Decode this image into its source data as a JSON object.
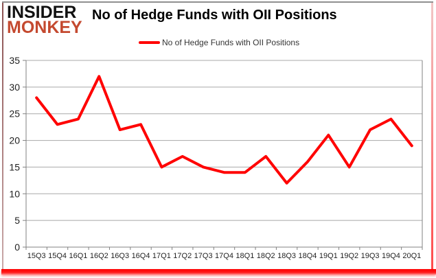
{
  "logo": {
    "line1": "INSIDER",
    "line2": "MONKEY"
  },
  "title": "No of Hedge Funds with OII Positions",
  "legend": {
    "label": "No of Hedge Funds with OII Positions"
  },
  "colors": {
    "logo_top": "#111111",
    "logo_bottom": "#C4492F",
    "title_text": "#000000",
    "legend_text": "#333333",
    "frame_red": "#FF0000"
  },
  "chart_data": {
    "type": "line",
    "title": "No of Hedge Funds with OII Positions",
    "categories": [
      "15Q3",
      "15Q4",
      "16Q1",
      "16Q2",
      "16Q3",
      "16Q4",
      "17Q1",
      "17Q2",
      "17Q3",
      "17Q4",
      "18Q1",
      "18Q2",
      "18Q3",
      "18Q4",
      "19Q1",
      "19Q2",
      "19Q3",
      "19Q4",
      "20Q1"
    ],
    "series": [
      {
        "name": "No of Hedge Funds with OII Positions",
        "color": "#FF0000",
        "values": [
          28,
          23,
          24,
          32,
          22,
          23,
          15,
          17,
          15,
          14,
          14,
          17,
          12,
          16,
          21,
          15,
          22,
          24,
          19
        ]
      }
    ],
    "xlabel": "",
    "ylabel": "",
    "ylim": [
      0,
      35
    ],
    "yticks": [
      0,
      5,
      10,
      15,
      20,
      25,
      30,
      35
    ],
    "grid": true,
    "legend_position": "top-center",
    "style": {
      "grid_color": "#A8A8A8",
      "axis_color": "#808080",
      "tick_label_color": "#1F1F1F",
      "line_width": 4
    }
  }
}
